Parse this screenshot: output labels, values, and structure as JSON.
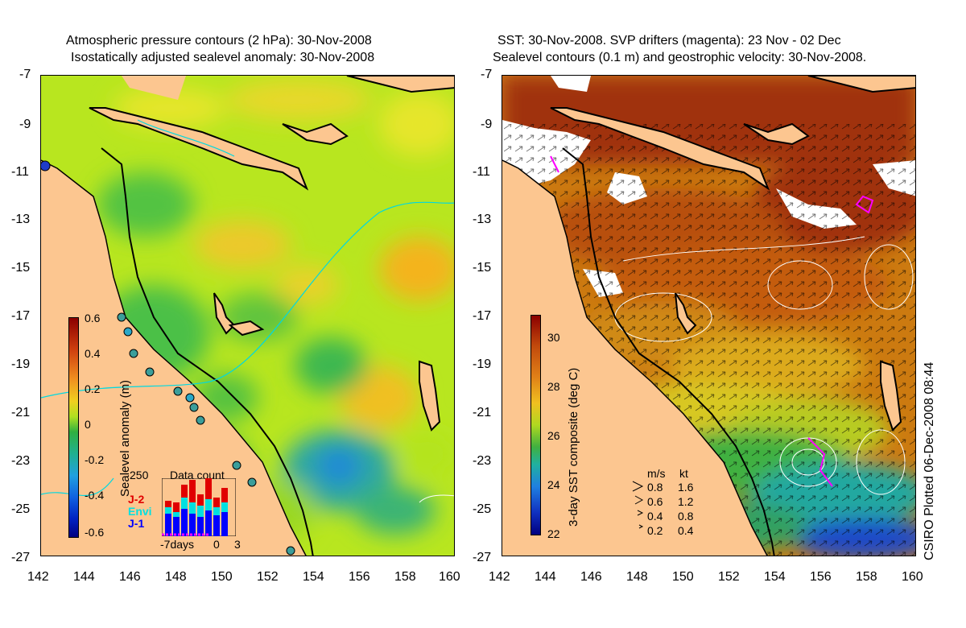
{
  "left_panel": {
    "title_line1": "Atmospheric pressure contours (2 hPa): 30-Nov-2008",
    "title_line2": "Isostatically adjusted sealevel anomaly: 30-Nov-2008",
    "colorbar_label": "Sealevel anomaly (m)",
    "colorbar_ticks": [
      "0.6",
      "0.4",
      "0.2",
      "0",
      "-0.2",
      "-0.4",
      "-0.6"
    ],
    "data_count": {
      "title": "Data count",
      "max_label": "250",
      "x_labels": [
        "-7days",
        "0",
        "3"
      ],
      "legend": [
        {
          "label": "J-2",
          "color": "#e00000"
        },
        {
          "label": "Envi",
          "color": "#00e0e0"
        },
        {
          "label": "J-1",
          "color": "#0000ff"
        }
      ]
    }
  },
  "right_panel": {
    "title_line1": "SST: 30-Nov-2008. SVP drifters (magenta): 23 Nov - 02 Dec",
    "title_line2": "Sealevel contours (0.1 m) and geostrophic velocity: 30-Nov-2008.",
    "colorbar_label": "3-day SST composite (deg C)",
    "colorbar_ticks": [
      "30",
      "28",
      "26",
      "24",
      "22"
    ],
    "velocity_legend": {
      "header_ms": "m/s",
      "header_kt": "kt",
      "rows": [
        {
          "ms": "0.8",
          "kt": "1.6"
        },
        {
          "ms": "0.6",
          "kt": "1.2"
        },
        {
          "ms": "0.4",
          "kt": "0.8"
        },
        {
          "ms": "0.2",
          "kt": "0.4"
        }
      ]
    }
  },
  "axes": {
    "lat_ticks": [
      "-7",
      "-9",
      "-11",
      "-13",
      "-15",
      "-17",
      "-19",
      "-21",
      "-23",
      "-25",
      "-27"
    ],
    "lon_ticks": [
      "142",
      "144",
      "146",
      "148",
      "150",
      "152",
      "154",
      "156",
      "158",
      "160"
    ]
  },
  "credit": "CSIRO Plotted 06-Dec-2008 08:44",
  "colors": {
    "land": "#fcc690",
    "cloud": "#ffffff",
    "drifter": "#ff00ff"
  }
}
